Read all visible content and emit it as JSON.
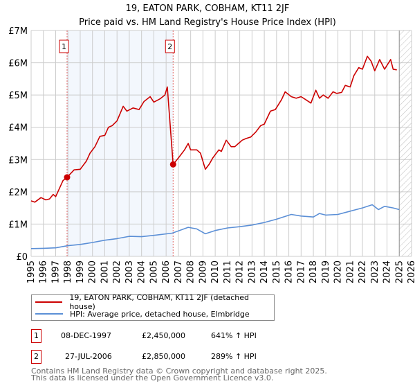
{
  "chart_data": {
    "type": "line",
    "title": "19, EATON PARK, COBHAM, KT11 2JF",
    "subtitle": "Price paid vs. HM Land Registry's House Price Index (HPI)",
    "xlim": [
      1995,
      2026
    ],
    "ylim": [
      0,
      7000000
    ],
    "x_ticks": [
      "1995",
      "1996",
      "1997",
      "1998",
      "1999",
      "2000",
      "2001",
      "2002",
      "2003",
      "2004",
      "2005",
      "2006",
      "2007",
      "2008",
      "2009",
      "2010",
      "2011",
      "2012",
      "2013",
      "2014",
      "2015",
      "2016",
      "2017",
      "2018",
      "2019",
      "2020",
      "2021",
      "2022",
      "2023",
      "2024",
      "2025",
      "2026"
    ],
    "y_ticks": [
      {
        "v": 0,
        "label": "£0"
      },
      {
        "v": 1000000,
        "label": "£1M"
      },
      {
        "v": 2000000,
        "label": "£2M"
      },
      {
        "v": 3000000,
        "label": "£3M"
      },
      {
        "v": 4000000,
        "label": "£4M"
      },
      {
        "v": 5000000,
        "label": "£5M"
      },
      {
        "v": 6000000,
        "label": "£6M"
      },
      {
        "v": 7000000,
        "label": "£7M"
      }
    ],
    "grid": true,
    "forecast_hatch_from": 2025.0,
    "series": [
      {
        "name": "19, EATON PARK, COBHAM, KT11 2JF (detached house)",
        "color": "#cc0000",
        "x": [
          1995,
          1995.3,
          1995.8,
          1996.2,
          1996.5,
          1996.8,
          1997.0,
          1997.3,
          1997.6,
          1997.93,
          1998.5,
          1999.0,
          1999.5,
          1999.8,
          2000.2,
          2000.6,
          2001.0,
          2001.3,
          2001.6,
          2002.0,
          2002.5,
          2002.8,
          2003.3,
          2003.8,
          2004.2,
          2004.7,
          2005.0,
          2005.5,
          2005.9,
          2006.1,
          2006.57,
          2007.0,
          2007.5,
          2007.8,
          2008.0,
          2008.5,
          2008.8,
          2009.2,
          2009.5,
          2009.8,
          2010.0,
          2010.3,
          2010.5,
          2010.9,
          2011.3,
          2011.6,
          2011.9,
          2012.2,
          2012.5,
          2012.9,
          2013.3,
          2013.7,
          2014.0,
          2014.5,
          2014.9,
          2015.4,
          2015.7,
          2016.2,
          2016.6,
          2017.0,
          2017.4,
          2017.8,
          2018.2,
          2018.5,
          2018.8,
          2019.2,
          2019.6,
          2019.9,
          2020.3,
          2020.6,
          2021.0,
          2021.3,
          2021.7,
          2022.0,
          2022.4,
          2022.7,
          2023.0,
          2023.4,
          2023.8,
          2024.3,
          2024.5,
          2024.8
        ],
        "y": [
          1720000,
          1680000,
          1820000,
          1750000,
          1780000,
          1920000,
          1850000,
          2100000,
          2350000,
          2450000,
          2680000,
          2700000,
          2950000,
          3200000,
          3400000,
          3720000,
          3750000,
          4000000,
          4050000,
          4200000,
          4650000,
          4500000,
          4600000,
          4550000,
          4800000,
          4950000,
          4780000,
          4880000,
          5000000,
          5250000,
          2850000,
          3050000,
          3300000,
          3500000,
          3300000,
          3300000,
          3200000,
          2700000,
          2850000,
          3050000,
          3150000,
          3300000,
          3250000,
          3600000,
          3400000,
          3400000,
          3500000,
          3600000,
          3650000,
          3700000,
          3850000,
          4050000,
          4100000,
          4500000,
          4550000,
          4850000,
          5100000,
          4950000,
          4900000,
          4950000,
          4850000,
          4750000,
          5150000,
          4900000,
          5000000,
          4900000,
          5100000,
          5050000,
          5080000,
          5300000,
          5250000,
          5600000,
          5850000,
          5800000,
          6200000,
          6050000,
          5750000,
          6100000,
          5800000,
          6100000,
          5800000,
          5780000
        ]
      },
      {
        "name": "HPI: Average price, detached house, Elmbridge",
        "color": "#5b8fd6",
        "x": [
          1995,
          1996,
          1997,
          1998,
          1999,
          2000,
          2001,
          2002,
          2003,
          2004,
          2005,
          2006.5,
          2007.8,
          2008.5,
          2009.2,
          2010,
          2011,
          2012,
          2013,
          2014,
          2015,
          2016.2,
          2017,
          2018,
          2018.5,
          2019,
          2020,
          2021,
          2022,
          2022.8,
          2023.3,
          2023.8,
          2024.5,
          2025
        ],
        "y": [
          240000,
          250000,
          265000,
          330000,
          370000,
          430000,
          500000,
          550000,
          620000,
          610000,
          650000,
          720000,
          900000,
          850000,
          700000,
          800000,
          880000,
          920000,
          970000,
          1050000,
          1150000,
          1300000,
          1250000,
          1220000,
          1330000,
          1280000,
          1300000,
          1400000,
          1500000,
          1600000,
          1450000,
          1550000,
          1500000,
          1450000
        ]
      }
    ],
    "sales": [
      {
        "id": "1",
        "x": 1997.93,
        "y": 2450000
      },
      {
        "id": "2",
        "x": 2006.57,
        "y": 2850000
      }
    ]
  },
  "legend": [
    {
      "label": "19, EATON PARK, COBHAM, KT11 2JF (detached house)",
      "color": "#cc0000"
    },
    {
      "label": "HPI: Average price, detached house, Elmbridge",
      "color": "#5b8fd6"
    }
  ],
  "transactions": [
    {
      "id": "1",
      "date": "08-DEC-1997",
      "price": "£2,450,000",
      "hpi": "641% ↑ HPI"
    },
    {
      "id": "2",
      "date": "27-JUL-2006",
      "price": "£2,850,000",
      "hpi": "289% ↑ HPI"
    }
  ],
  "footer": {
    "line1": "Contains HM Land Registry data © Crown copyright and database right 2025.",
    "line2": "This data is licensed under the Open Government Licence v3.0."
  }
}
